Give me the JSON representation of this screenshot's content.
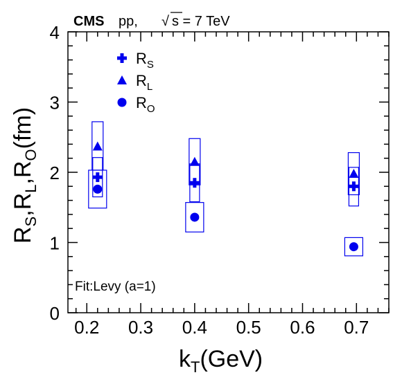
{
  "header": {
    "experiment": "CMS",
    "system": "pp,",
    "energy_text": "s = 7 TeV",
    "sqrt_symbol": "√"
  },
  "fit_note": "Fit:Levy (a=1)",
  "colors": {
    "series": "#0000ee",
    "axis": "#000000"
  },
  "chart_data": {
    "type": "scatter",
    "xlabel": {
      "main": "k",
      "sub": "T",
      "tail": "(GeV)"
    },
    "ylabel": {
      "parts": [
        {
          "t": "R",
          "sub": "S"
        },
        {
          "t": ",R",
          "sub": "L"
        },
        {
          "t": ",R",
          "sub": "O"
        },
        {
          "t": "(fm)",
          "sub": ""
        }
      ]
    },
    "xlim": [
      0.165,
      0.76
    ],
    "ylim": [
      0,
      4
    ],
    "xticks": [
      "0.2",
      "0.3",
      "0.4",
      "0.5",
      "0.6",
      "0.7"
    ],
    "yticks": [
      "0",
      "1",
      "2",
      "3",
      "4"
    ],
    "grid": false,
    "legend_position": "top-left",
    "series": [
      {
        "name": "R",
        "name_sub": "S",
        "marker": "cross",
        "points": [
          {
            "x": 0.22,
            "y": 1.93,
            "syst_low": 1.65,
            "syst_high": 2.21
          },
          {
            "x": 0.4,
            "y": 1.85,
            "syst_low": 1.58,
            "syst_high": 2.12
          },
          {
            "x": 0.695,
            "y": 1.8,
            "syst_low": 1.52,
            "syst_high": 2.07
          }
        ]
      },
      {
        "name": "R",
        "name_sub": "L",
        "marker": "triangle",
        "points": [
          {
            "x": 0.22,
            "y": 2.37,
            "syst_low": 2.03,
            "syst_high": 2.72
          },
          {
            "x": 0.4,
            "y": 2.15,
            "syst_low": 1.82,
            "syst_high": 2.48
          },
          {
            "x": 0.695,
            "y": 1.98,
            "syst_low": 1.68,
            "syst_high": 2.28
          }
        ]
      },
      {
        "name": "R",
        "name_sub": "O",
        "marker": "circle",
        "points": [
          {
            "x": 0.22,
            "y": 1.76,
            "syst_low": 1.49,
            "syst_high": 2.03
          },
          {
            "x": 0.4,
            "y": 1.36,
            "syst_low": 1.15,
            "syst_high": 1.57
          },
          {
            "x": 0.695,
            "y": 0.94,
            "syst_low": 0.81,
            "syst_high": 1.07
          }
        ]
      }
    ]
  }
}
